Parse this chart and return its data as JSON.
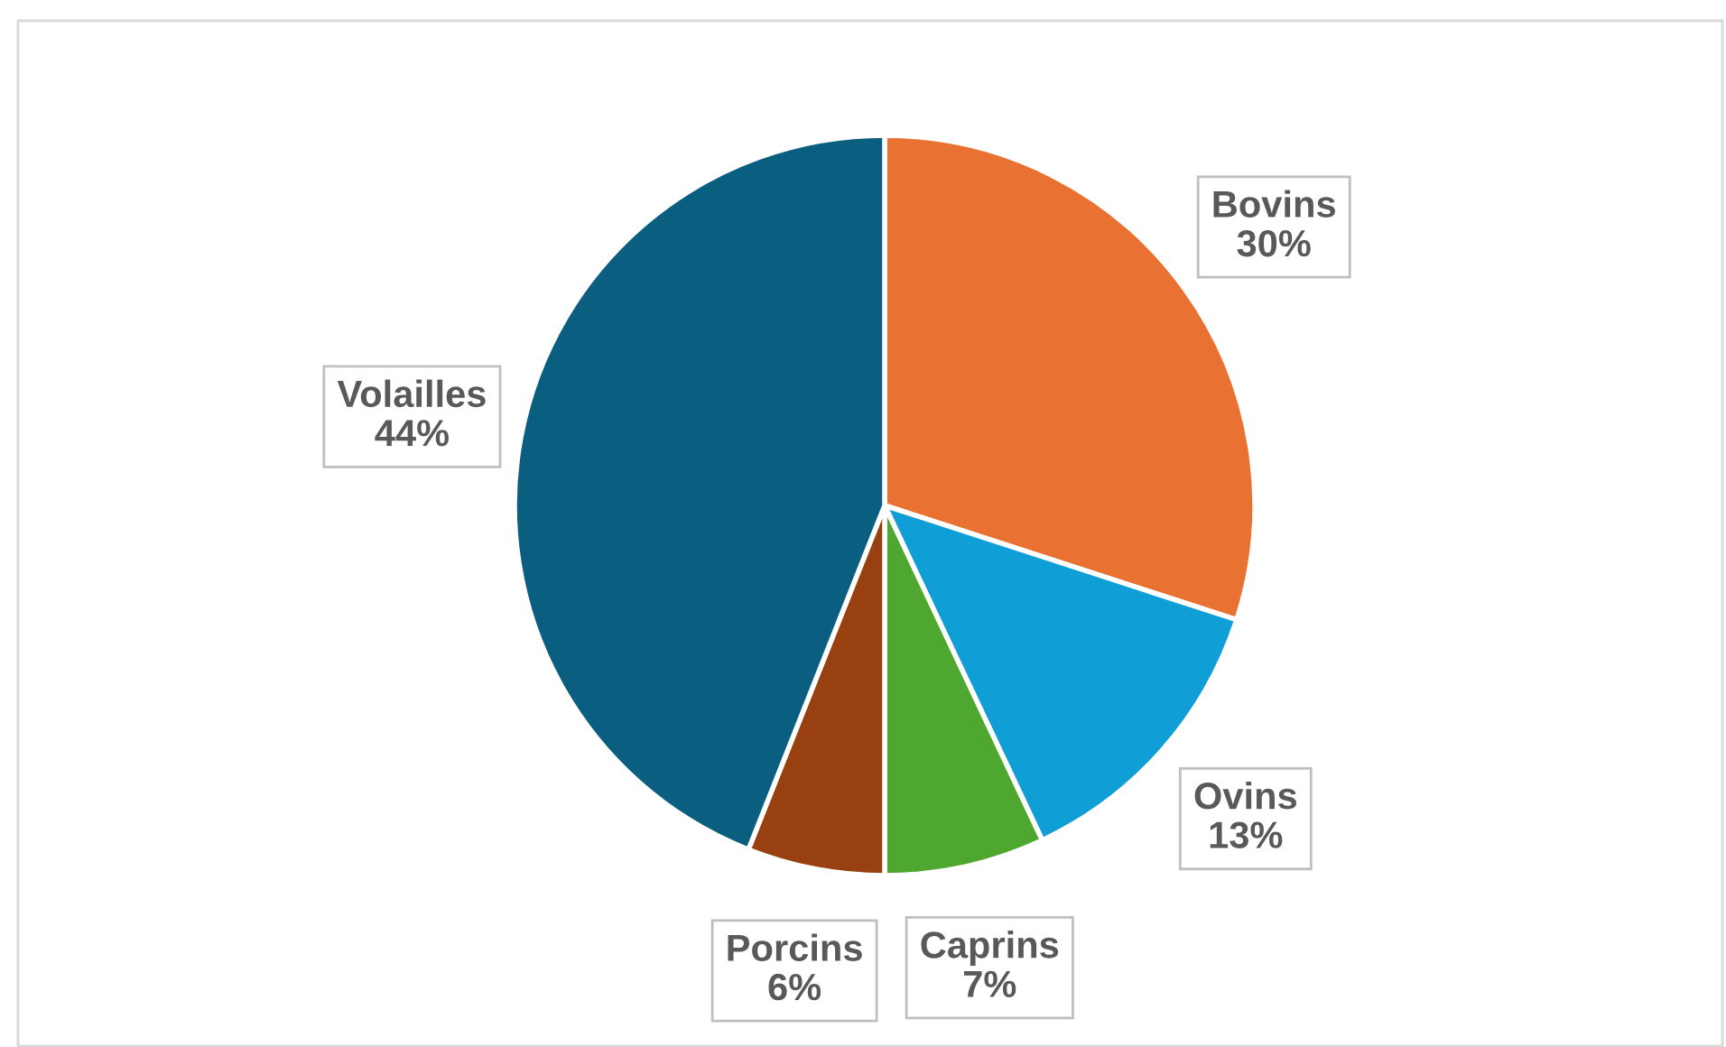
{
  "chart_data": {
    "type": "pie",
    "categories": [
      "Bovins",
      "Ovins",
      "Caprins",
      "Porcins",
      "Volailles"
    ],
    "values": [
      30,
      13,
      7,
      6,
      44
    ],
    "value_labels": [
      "30%",
      "13%",
      "7%",
      "6%",
      "44%"
    ],
    "colors": [
      "#e97132",
      "#0f9ed5",
      "#4ea72e",
      "#984010",
      "#0a5e80"
    ],
    "legend": false
  }
}
